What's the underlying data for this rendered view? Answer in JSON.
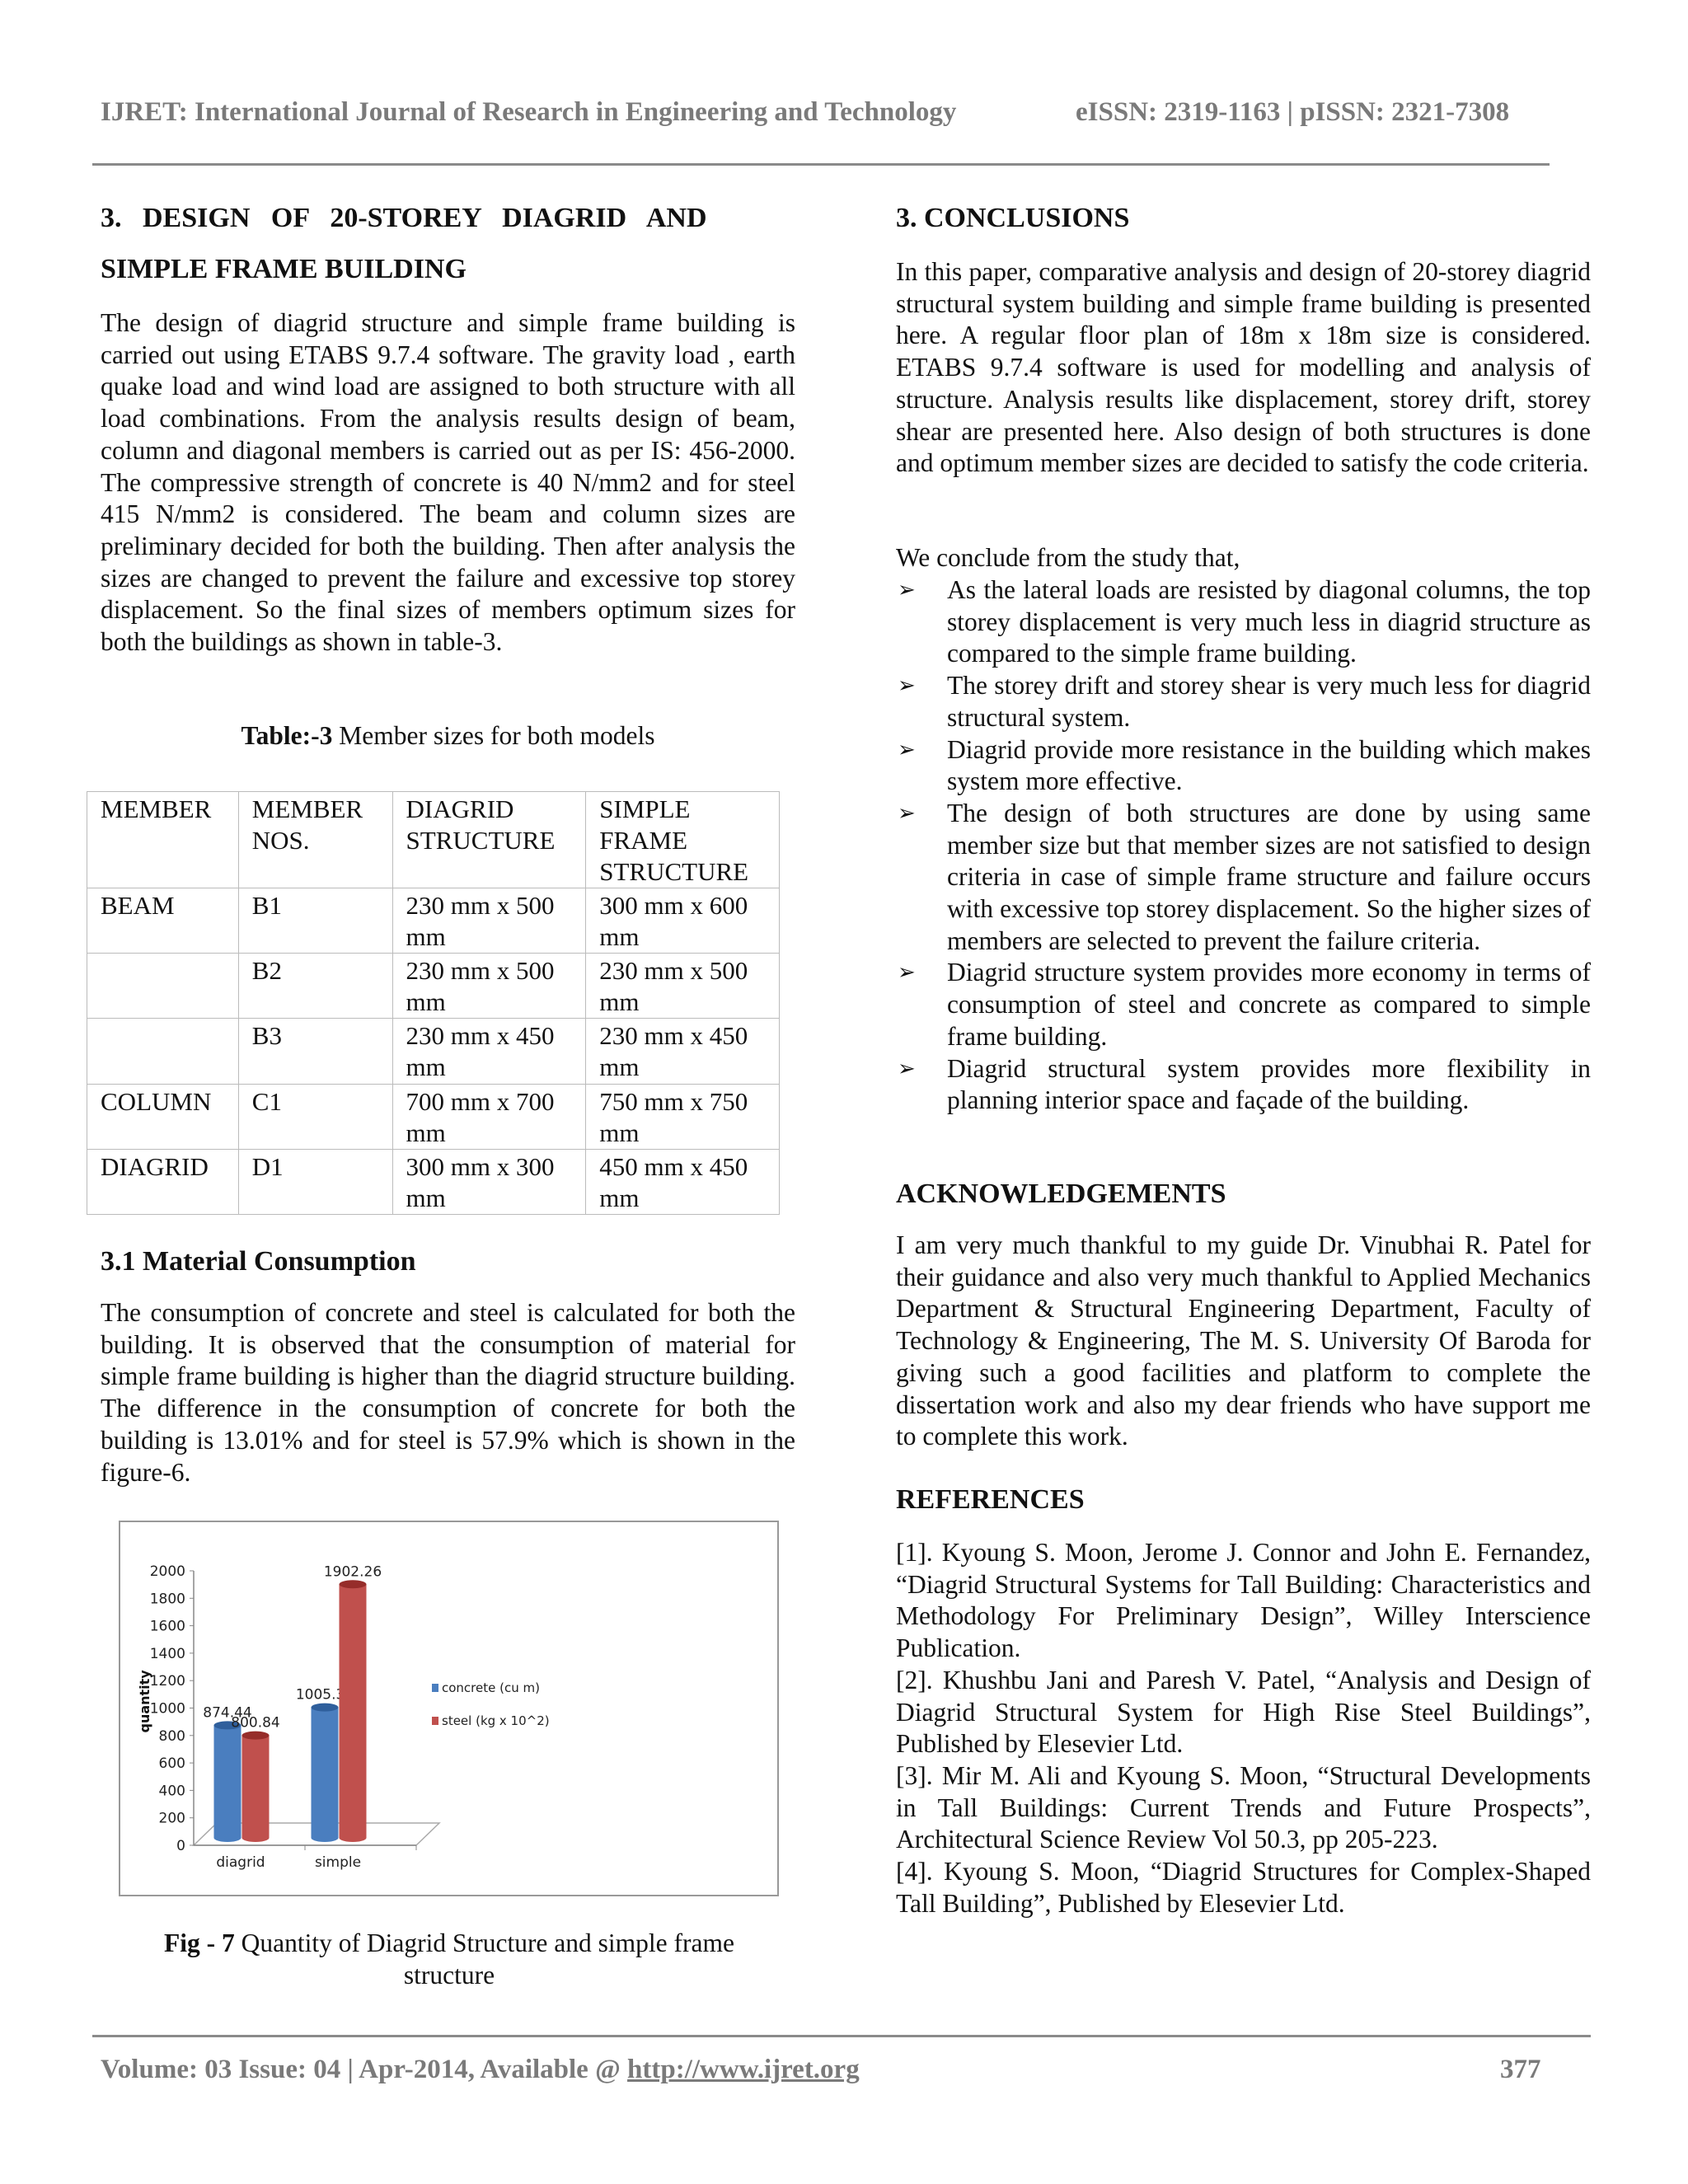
{
  "header": {
    "journal": "IJRET: International Journal of Research in Engineering and Technology",
    "issn": "eISSN: 2319-1163 | pISSN: 2321-7308"
  },
  "left": {
    "section3_title_line1": "3.   DESIGN   OF   20-STOREY   DIAGRID   AND",
    "section3_title_line2": "SIMPLE FRAME BUILDING",
    "section3_para": "The design of diagrid structure and simple frame building is carried out using ETABS 9.7.4 software. The gravity load , earth quake load and wind load are assigned to both structure with all load combinations. From the analysis results design of beam, column and diagonal members is carried out as per IS: 456-2000. The compressive strength of concrete is 40 N/mm2 and for steel 415 N/mm2 is considered. The beam and column sizes are preliminary decided for both the building. Then after analysis the sizes are changed to prevent the failure and excessive top storey displacement. So the final sizes of members optimum sizes for both the buildings as shown in table-3.",
    "table_caption_label": "Table:-3",
    "table_caption_text": " Member sizes for both models",
    "table": {
      "headers": [
        "MEMBER",
        "MEMBER NOS.",
        "DIAGRID STRUCTURE",
        "SIMPLE FRAME STRUCTURE"
      ],
      "rows": [
        [
          "BEAM",
          "B1",
          "230 mm x 500 mm",
          "300 mm x 600 mm"
        ],
        [
          "",
          "B2",
          "230 mm x 500 mm",
          "230 mm x 500 mm"
        ],
        [
          "",
          "B3",
          "230 mm x 450 mm",
          "230 mm x 450 mm"
        ],
        [
          "COLUMN",
          "C1",
          "700 mm x 700 mm",
          "750 mm x 750 mm"
        ],
        [
          "DIAGRID",
          "D1",
          "300 mm x 300 mm",
          "450 mm x 450 mm"
        ]
      ]
    },
    "section31_title": "3.1 Material Consumption",
    "section31_para": "The consumption of concrete and steel is calculated for both the building. It is observed that the consumption of material for simple frame building is higher than the diagrid structure building. The difference in the consumption of concrete for both the building is 13.01% and for steel is 57.9% which is shown in the figure-6.",
    "fig_caption_label": "Fig - 7",
    "fig_caption_text": " Quantity of Diagrid Structure and simple frame structure"
  },
  "chart_data": {
    "type": "bar",
    "style": "3d-cylinder",
    "categories": [
      "diagrid",
      "simple"
    ],
    "series": [
      {
        "name": "concrete (cu m)",
        "color": "#4a7ebf",
        "values": [
          874.44,
          1005.3
        ],
        "labels": [
          "874.44",
          "1005.30"
        ]
      },
      {
        "name": "steel (kg x 10^2)",
        "color": "#c0504d",
        "values": [
          800.84,
          1902.26
        ],
        "labels": [
          "800.84",
          "1902.26"
        ]
      }
    ],
    "ylabel": "quantity",
    "ylim": [
      0,
      2000
    ],
    "yticks": [
      "0",
      "200",
      "400",
      "600",
      "800",
      "1000",
      "1200",
      "1400",
      "1600",
      "1800",
      "2000"
    ],
    "legend": "right",
    "grid": false
  },
  "right": {
    "conclusions_title": "3. CONCLUSIONS",
    "conclusions_para": "In this paper, comparative analysis and design of 20-storey diagrid structural system building and simple frame building is presented here. A regular floor plan of 18m x 18m size is considered. ETABS 9.7.4 software is used for modelling and analysis of structure. Analysis results like displacement, storey drift, storey shear are presented here. Also design of both structures is done and optimum member sizes are decided to satisfy the code criteria.",
    "conclude_intro": "We conclude from the study that,",
    "bullet_icon": "arrowhead-bullet",
    "bullets": [
      "As the lateral loads are resisted by diagonal columns, the top storey displacement is very much less in diagrid structure as compared to the simple frame building.",
      "The storey drift and storey shear is very much less for diagrid structural system.",
      "Diagrid provide more resistance in the building which makes system more effective.",
      "The design of both structures are done by using same member size but that member sizes are not satisfied to design criteria in case of simple frame structure and failure occurs with excessive top storey displacement. So the higher sizes of members are selected to prevent the failure criteria.",
      "Diagrid structure system provides more economy in terms of consumption of steel and concrete as compared to simple frame building.",
      "Diagrid structural system provides more flexibility in planning interior space and façade of the building."
    ],
    "ack_title": "ACKNOWLEDGEMENTS",
    "ack_para": "I am very much thankful to my guide Dr. Vinubhai R. Patel for their guidance and also very much thankful to Applied Mechanics Department & Structural Engineering Department, Faculty of Technology & Engineering, The M. S. University Of Baroda for giving such a good facilities and platform to complete the dissertation work and also my dear friends who have support me to complete this work.",
    "refs_title": "REFERENCES",
    "refs": [
      "[1]. Kyoung S. Moon, Jerome J. Connor and John E. Fernandez, “Diagrid Structural Systems for Tall Building: Characteristics and Methodology For Preliminary Design”, Willey Interscience Publication.",
      "[2]. Khushbu Jani and Paresh V. Patel, “Analysis and Design of Diagrid Structural System for High Rise Steel Buildings”, Published by Elesevier Ltd.",
      "[3]. Mir M. Ali and Kyoung S. Moon, “Structural Developments in Tall Buildings: Current Trends and Future Prospects”, Architectural Science Review Vol 50.3, pp 205-223.",
      "[4]. Kyoung S. Moon, “Diagrid Structures for Complex-Shaped Tall Building”, Published by Elesevier Ltd."
    ]
  },
  "footer": {
    "text": "Volume: 03 Issue: 04 | Apr-2014, Available @ ",
    "link": "http://www.ijret.org",
    "page": "377"
  }
}
